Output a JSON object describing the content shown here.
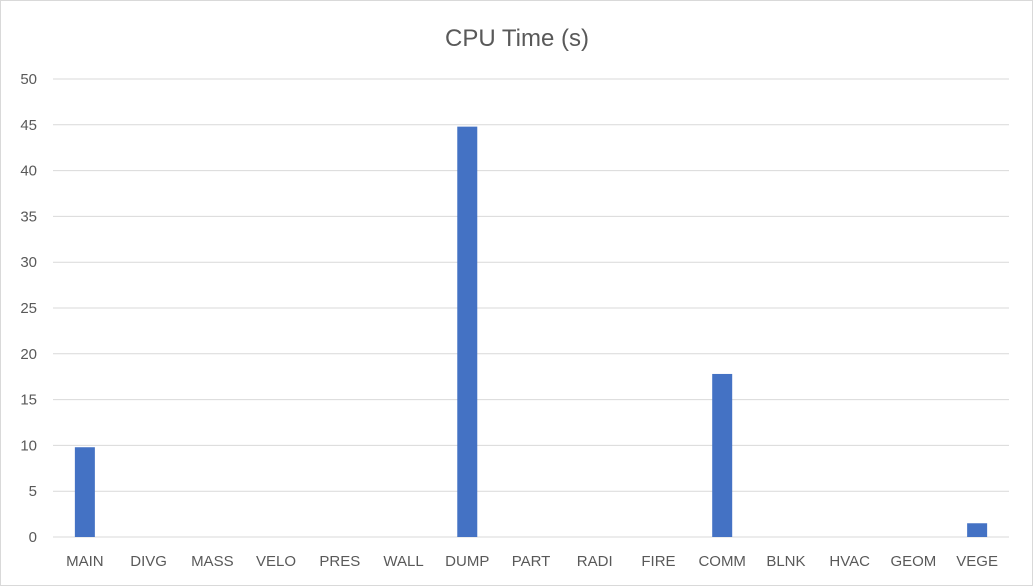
{
  "chart_data": {
    "type": "bar",
    "title": "CPU Time (s)",
    "xlabel": "",
    "ylabel": "",
    "categories": [
      "MAIN",
      "DIVG",
      "MASS",
      "VELO",
      "PRES",
      "WALL",
      "DUMP",
      "PART",
      "RADI",
      "FIRE",
      "COMM",
      "BLNK",
      "HVAC",
      "GEOM",
      "VEGE"
    ],
    "values": [
      9.8,
      0,
      0,
      0,
      0,
      0,
      44.8,
      0,
      0,
      0,
      17.8,
      0,
      0,
      0,
      1.5
    ],
    "ylim": [
      0,
      50
    ],
    "yticks": [
      0,
      5,
      10,
      15,
      20,
      25,
      30,
      35,
      40,
      45,
      50
    ],
    "grid": true,
    "legend": "none",
    "bar_color": "#4472c4"
  }
}
